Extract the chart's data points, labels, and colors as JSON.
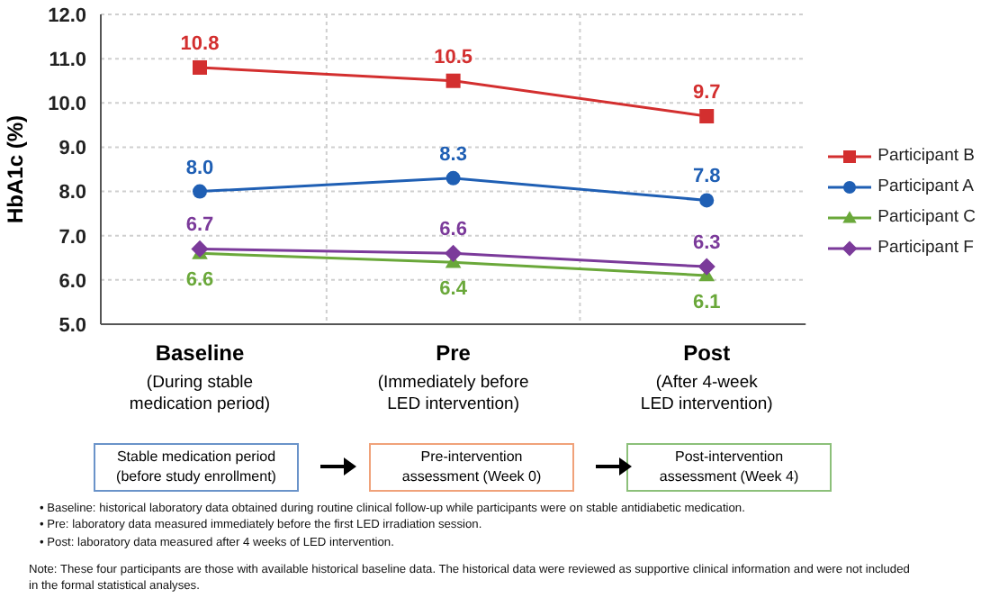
{
  "chart_data": {
    "type": "line",
    "ylabel": "HbA1c (%)",
    "categories": [
      "Baseline\n(During stable\nmedication period)",
      "Pre\n(Immediately before\nLED intervention)",
      "Post\n(After 4-week\nLED intervention)"
    ],
    "series": [
      {
        "name": "Participant B",
        "color": "#d32f2f",
        "marker": "square",
        "values": [
          10.8,
          10.5,
          9.7
        ],
        "value_labels": [
          "10.8",
          "10.5",
          "9.7"
        ]
      },
      {
        "name": "Participant A",
        "color": "#1f5fb4",
        "marker": "circle",
        "values": [
          8.0,
          8.3,
          7.8
        ],
        "value_labels": [
          "8.0",
          "8.3",
          "7.8"
        ]
      },
      {
        "name": "Participant C",
        "color": "#6aa83a",
        "marker": "triangle",
        "values": [
          6.6,
          6.4,
          6.1
        ],
        "value_labels": [
          "6.6",
          "6.4",
          "6.1"
        ]
      },
      {
        "name": "Participant F",
        "color": "#7b3a9a",
        "marker": "diamond",
        "values": [
          6.7,
          6.6,
          6.3
        ],
        "value_labels": [
          "6.7",
          "6.6",
          "6.3"
        ]
      }
    ],
    "ylim": [
      5,
      12
    ],
    "yticks": [
      {
        "value": 5,
        "label": "5.0"
      },
      {
        "value": 6,
        "label": "6.0"
      },
      {
        "value": 7,
        "label": "7.0"
      },
      {
        "value": 8,
        "label": "8.0"
      },
      {
        "value": 9,
        "label": "9.0"
      },
      {
        "value": 10,
        "label": "10.0"
      },
      {
        "value": 11,
        "label": "11.0"
      },
      {
        "value": 12,
        "label": "12.0"
      }
    ],
    "grid": true,
    "legend": "right",
    "annotations": [
      "Stable medication period\n(before study enrollment)",
      "Pre-intervention\nassessment (Week 0)",
      "Post-intervention\nassessment (Week 4)",
      "• Baseline: historical laboratory data obtained during routine clinical follow-up while participants were on stable antidiabetic medication.",
      "• Pre: laboratory data measured immediately before the first LED irradiation session.",
      "• Post: laboratory data measured after 4 weeks of LED intervention.",
      "Note: These four participants are those with available historical baseline data. The historical data were reviewed as supportive clinical information and were not included in the formal statistical analyses."
    ]
  }
}
